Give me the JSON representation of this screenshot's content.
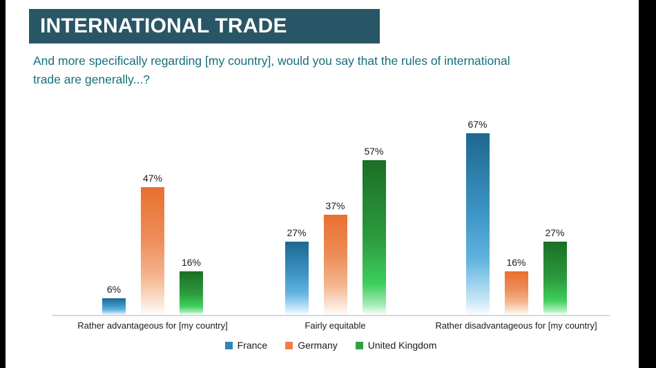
{
  "slide": {
    "title": "INTERNATIONAL TRADE",
    "question_line1": "And more specifically regarding [my country], would you say that the rules of international",
    "question_line2": "trade are generally...?"
  },
  "colors": {
    "header_bg": "#295667",
    "header_text": "#FFFFFF",
    "question_text": "#136F7C",
    "axis_line": "#D8D8D8",
    "label_text": "#1A1A1A",
    "background": "#FFFFFF",
    "letterbox": "#000000"
  },
  "chart_data": {
    "type": "bar",
    "title": "",
    "categories": [
      "Rather advantageous for [my country]",
      "Fairly equitable",
      "Rather disadvantageous for [my country]"
    ],
    "series": [
      {
        "name": "France",
        "color": "#2E86B5",
        "gradient": [
          [
            "#1D6890",
            0
          ],
          [
            "#3E96C6",
            45
          ],
          [
            "#62B4E0",
            70
          ],
          [
            "#C8E6F7",
            92
          ],
          [
            "#FAFDFF",
            100
          ]
        ],
        "values": [
          6,
          27,
          67
        ]
      },
      {
        "name": "Germany",
        "color": "#ED8049",
        "gradient": [
          [
            "#E8702F",
            0
          ],
          [
            "#ED8C59",
            40
          ],
          [
            "#F4B58D",
            70
          ],
          [
            "#FBE3D3",
            90
          ],
          [
            "#FFFDFC",
            100
          ]
        ],
        "values": [
          47,
          37,
          16
        ]
      },
      {
        "name": "United Kingdom",
        "color": "#2FA047",
        "gradient": [
          [
            "#1B6E26",
            0
          ],
          [
            "#2B9A3D",
            50
          ],
          [
            "#3DCE5C",
            80
          ],
          [
            "#A9ECB8",
            94
          ],
          [
            "#FBFFFB",
            100
          ]
        ],
        "values": [
          16,
          57,
          27
        ]
      }
    ],
    "value_suffix": "%",
    "ylim": [
      0,
      70
    ],
    "grid": false,
    "legend_position": "bottom"
  }
}
